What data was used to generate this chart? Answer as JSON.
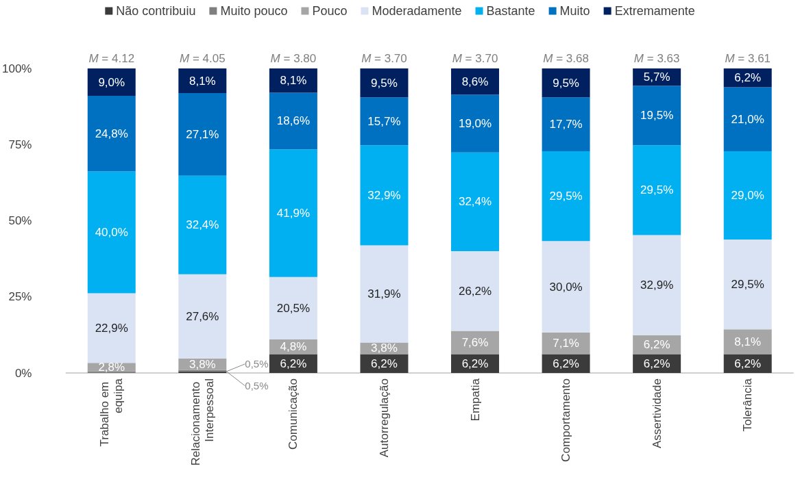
{
  "chart_data": {
    "type": "bar",
    "stacked": true,
    "legend": "top",
    "grid": false,
    "categories": [
      "Trabalho em equipa",
      "Relacionamento Interpessoal",
      "Comunicação",
      "Autorregulação",
      "Empatia",
      "Comportamento",
      "Assertividade",
      "Tolerância"
    ],
    "ylim": [
      0,
      100
    ],
    "yticks": [
      {
        "value": 0,
        "label": "0%"
      },
      {
        "value": 25,
        "label": "25%"
      },
      {
        "value": 50,
        "label": "50%"
      },
      {
        "value": 75,
        "label": "75%"
      },
      {
        "value": 100,
        "label": "100%"
      }
    ],
    "series": [
      {
        "name": "Não contribuiu",
        "color": "#3b3b3b",
        "values": [
          null,
          0.5,
          6.2,
          6.2,
          6.2,
          6.2,
          6.2,
          6.2
        ],
        "value_labels": [
          null,
          "0,5%",
          "6,2%",
          "6,2%",
          "6,2%",
          "6,2%",
          "6,2%",
          "6,2%"
        ]
      },
      {
        "name": "Muito pouco",
        "color": "#7f7f7f",
        "values": [
          0.5,
          0.5,
          null,
          null,
          null,
          null,
          null,
          null
        ],
        "value_labels": [
          null,
          "0,5%",
          null,
          null,
          null,
          null,
          null,
          null
        ]
      },
      {
        "name": "Pouco",
        "color": "#a6a6a6",
        "values": [
          2.8,
          3.8,
          4.8,
          3.8,
          7.6,
          7.1,
          6.2,
          8.1
        ],
        "value_labels": [
          "2,8%",
          "3,8%",
          "4,8%",
          "3,8%",
          "7,6%",
          "7,1%",
          "6,2%",
          "8,1%"
        ]
      },
      {
        "name": "Moderadamente",
        "color": "#dae3f3",
        "values": [
          22.9,
          27.6,
          20.5,
          31.9,
          26.2,
          30.0,
          32.9,
          29.5
        ],
        "value_labels": [
          "22,9%",
          "27,6%",
          "20,5%",
          "31,9%",
          "26,2%",
          "30,0%",
          "32,9%",
          "29,5%"
        ]
      },
      {
        "name": "Bastante",
        "color": "#00b0f0",
        "values": [
          40.0,
          32.4,
          41.9,
          32.9,
          32.4,
          29.5,
          29.5,
          29.0
        ],
        "value_labels": [
          "40,0%",
          "32,4%",
          "41,9%",
          "32,9%",
          "32,4%",
          "29,5%",
          "29,5%",
          "29,0%"
        ]
      },
      {
        "name": "Muito",
        "color": "#0070c0",
        "values": [
          24.8,
          27.1,
          18.6,
          15.7,
          19.0,
          17.7,
          19.5,
          21.0
        ],
        "value_labels": [
          "24,8%",
          "27,1%",
          "18,6%",
          "15,7%",
          "19,0%",
          "17,7%",
          "19,5%",
          "21,0%"
        ]
      },
      {
        "name": "Extremamente",
        "color": "#002060",
        "values": [
          9.0,
          8.1,
          8.1,
          9.5,
          8.6,
          9.5,
          5.7,
          6.2
        ],
        "value_labels": [
          "9,0%",
          "8,1%",
          "8,1%",
          "9,5%",
          "8,6%",
          "9,5%",
          "5,7%",
          "6,2%"
        ]
      }
    ],
    "annotations": [
      {
        "text": "M = 4.12",
        "x": "Trabalho em equipa",
        "y": 100
      },
      {
        "text": "M = 4.05",
        "x": "Relacionamento Interpessoal",
        "y": 100
      },
      {
        "text": "M = 3.80",
        "x": "Comunicação",
        "y": 100
      },
      {
        "text": "M = 3.70",
        "x": "Autorregulação",
        "y": 100
      },
      {
        "text": "M = 3.70",
        "x": "Empatia",
        "y": 100
      },
      {
        "text": "M = 3.68",
        "x": "Comportamento",
        "y": 100
      },
      {
        "text": "M = 3.63",
        "x": "Assertividade",
        "y": 100
      },
      {
        "text": "M = 3.61",
        "x": "Tolerância",
        "y": 100
      }
    ]
  }
}
